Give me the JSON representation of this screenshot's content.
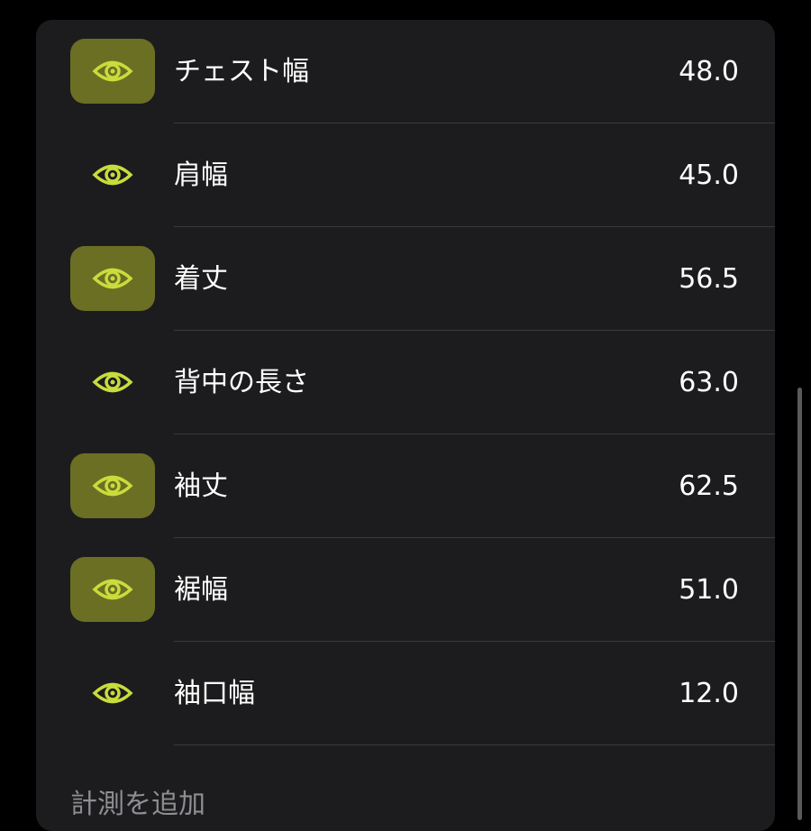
{
  "accent": "#c8dc3c",
  "highlight": "#6b6f24",
  "measurements": [
    {
      "label": "チェスト幅",
      "value": "48.0",
      "highlighted": true,
      "icon": "eye-icon"
    },
    {
      "label": "肩幅",
      "value": "45.0",
      "highlighted": false,
      "icon": "eye-icon"
    },
    {
      "label": "着丈",
      "value": "56.5",
      "highlighted": true,
      "icon": "eye-icon"
    },
    {
      "label": "背中の長さ",
      "value": "63.0",
      "highlighted": false,
      "icon": "eye-icon"
    },
    {
      "label": "袖丈",
      "value": "62.5",
      "highlighted": true,
      "icon": "eye-icon"
    },
    {
      "label": "裾幅",
      "value": "51.0",
      "highlighted": true,
      "icon": "eye-icon"
    },
    {
      "label": "袖口幅",
      "value": "12.0",
      "highlighted": false,
      "icon": "eye-icon"
    }
  ],
  "add_label": "計測を追加"
}
